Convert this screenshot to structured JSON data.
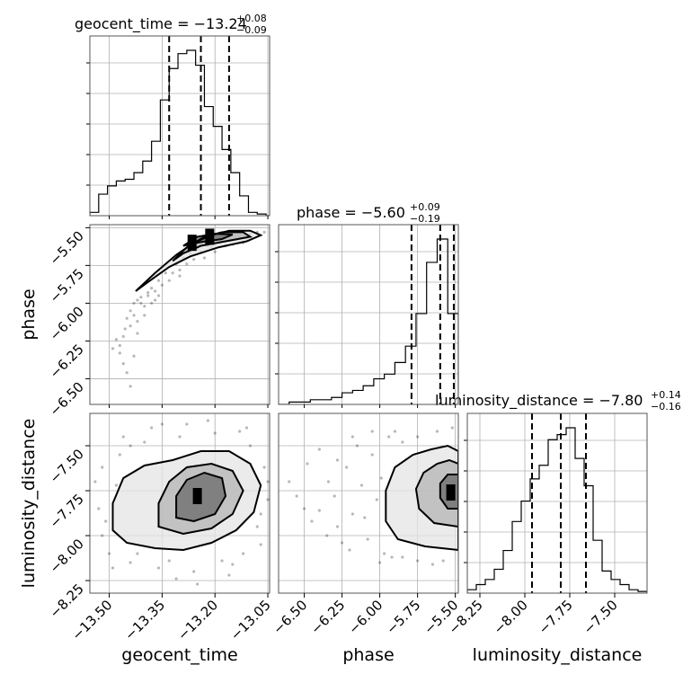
{
  "chart_data": {
    "type": "corner",
    "parameters": [
      "geocent_time",
      "phase",
      "luminosity_distance"
    ],
    "ranges": {
      "geocent_time": [
        -13.555,
        -13.045
      ],
      "phase": [
        -6.67,
        -5.48
      ],
      "luminosity_distance": [
        -8.32,
        -7.32
      ]
    },
    "grid": true,
    "diagonal": [
      {
        "parameter": "geocent_time",
        "title_main": "geocent_time = −13.24",
        "title_plus": "+0.08",
        "title_minus": "−0.09",
        "median": -13.24,
        "q16": -13.33,
        "q84": -13.16,
        "hist_edges": [
          -13.555,
          -13.53,
          -13.505,
          -13.48,
          -13.455,
          -13.43,
          -13.405,
          -13.38,
          -13.355,
          -13.33,
          -13.305,
          -13.28,
          -13.255,
          -13.23,
          -13.205,
          -13.18,
          -13.155,
          -13.13,
          -13.105,
          -13.08,
          -13.055,
          -13.045
        ],
        "hist_counts": [
          0.02,
          0.13,
          0.18,
          0.21,
          0.22,
          0.26,
          0.33,
          0.45,
          0.7,
          0.89,
          0.98,
          1.0,
          0.91,
          0.66,
          0.54,
          0.4,
          0.26,
          0.12,
          0.02,
          0.01,
          0.0
        ]
      },
      {
        "parameter": "phase",
        "title_main": "phase = −5.60",
        "title_plus": "+0.09",
        "title_minus": "−0.19",
        "median": -5.6,
        "q16": -5.79,
        "q84": -5.51,
        "hist_edges": [
          -6.67,
          -6.6,
          -6.53,
          -6.46,
          -6.39,
          -6.32,
          -6.25,
          -6.18,
          -6.11,
          -6.04,
          -5.97,
          -5.9,
          -5.83,
          -5.76,
          -5.69,
          -5.62,
          -5.55,
          -5.48
        ],
        "hist_counts": [
          0.0,
          0.01,
          0.01,
          0.02,
          0.02,
          0.03,
          0.05,
          0.06,
          0.08,
          0.11,
          0.13,
          0.18,
          0.25,
          0.39,
          0.61,
          0.71,
          0.39
        ]
      },
      {
        "parameter": "luminosity_distance",
        "title_main": "luminosity_distance = −7.80",
        "title_plus": "+0.14",
        "title_minus": "−0.16",
        "median": -7.8,
        "q16": -7.96,
        "q84": -7.66,
        "hist_edges": [
          -8.32,
          -8.27,
          -8.22,
          -8.17,
          -8.12,
          -8.07,
          -8.02,
          -7.97,
          -7.92,
          -7.87,
          -7.82,
          -7.77,
          -7.72,
          -7.67,
          -7.62,
          -7.57,
          -7.52,
          -7.47,
          -7.42,
          -7.37,
          -7.32
        ],
        "hist_counts": [
          0.02,
          0.05,
          0.08,
          0.14,
          0.25,
          0.42,
          0.54,
          0.67,
          0.75,
          0.9,
          0.93,
          0.97,
          0.79,
          0.63,
          0.31,
          0.13,
          0.08,
          0.05,
          0.02,
          0.01
        ]
      }
    ],
    "pairs": [
      {
        "x": "geocent_time",
        "y": "phase",
        "cores": [
          {
            "x": -13.215,
            "y": -5.56
          },
          {
            "x": -13.265,
            "y": -5.6
          }
        ],
        "contour_levels": [
          [
            [
              -13.425,
              -5.92
            ],
            [
              -13.37,
              -5.8
            ],
            [
              -13.31,
              -5.68
            ],
            [
              -13.26,
              -5.6
            ],
            [
              -13.21,
              -5.55
            ],
            [
              -13.16,
              -5.52
            ],
            [
              -13.1,
              -5.52
            ],
            [
              -13.07,
              -5.55
            ],
            [
              -13.11,
              -5.59
            ],
            [
              -13.19,
              -5.63
            ],
            [
              -13.27,
              -5.69
            ],
            [
              -13.33,
              -5.76
            ],
            [
              -13.39,
              -5.86
            ]
          ],
          [
            [
              -13.32,
              -5.72
            ],
            [
              -13.28,
              -5.63
            ],
            [
              -13.23,
              -5.56
            ],
            [
              -13.18,
              -5.53
            ],
            [
              -13.12,
              -5.53
            ],
            [
              -13.1,
              -5.56
            ],
            [
              -13.17,
              -5.59
            ],
            [
              -13.24,
              -5.62
            ],
            [
              -13.29,
              -5.67
            ]
          ],
          [
            [
              -13.29,
              -5.62
            ],
            [
              -13.25,
              -5.56
            ],
            [
              -13.2,
              -5.54
            ],
            [
              -13.15,
              -5.545
            ],
            [
              -13.18,
              -5.575
            ],
            [
              -13.24,
              -5.595
            ]
          ]
        ],
        "scatter": [
          [
            -13.455,
            -6.17
          ],
          [
            -13.47,
            -6.28
          ],
          [
            -13.44,
            -6.05
          ],
          [
            -13.42,
            -5.98
          ],
          [
            -13.43,
            -6.35
          ],
          [
            -13.4,
            -6.02
          ],
          [
            -13.38,
            -5.9
          ],
          [
            -13.36,
            -5.85
          ],
          [
            -13.34,
            -5.8
          ],
          [
            -13.31,
            -5.74
          ],
          [
            -13.29,
            -5.7
          ],
          [
            -13.27,
            -5.67
          ],
          [
            -13.25,
            -5.64
          ],
          [
            -13.22,
            -5.62
          ],
          [
            -13.19,
            -5.6
          ],
          [
            -13.16,
            -5.57
          ],
          [
            -13.13,
            -5.56
          ],
          [
            -13.1,
            -5.54
          ],
          [
            -13.08,
            -5.53
          ],
          [
            -13.45,
            -6.1
          ],
          [
            -13.46,
            -6.22
          ],
          [
            -13.44,
            -6.15
          ],
          [
            -13.41,
            -6.0
          ],
          [
            -13.39,
            -5.95
          ],
          [
            -13.37,
            -5.92
          ],
          [
            -13.35,
            -5.88
          ],
          [
            -13.32,
            -5.8
          ],
          [
            -13.3,
            -5.78
          ],
          [
            -13.28,
            -5.74
          ],
          [
            -13.26,
            -5.71
          ],
          [
            -13.24,
            -5.66
          ],
          [
            -13.21,
            -5.63
          ],
          [
            -13.18,
            -5.59
          ],
          [
            -13.14,
            -5.58
          ],
          [
            -13.11,
            -5.57
          ],
          [
            -13.43,
            -6.08
          ],
          [
            -13.42,
            -6.12
          ],
          [
            -13.4,
            -6.08
          ],
          [
            -13.38,
            -6.0
          ],
          [
            -13.36,
            -5.95
          ],
          [
            -13.46,
            -6.4
          ],
          [
            -13.45,
            -6.46
          ],
          [
            -13.44,
            -6.55
          ],
          [
            -13.47,
            -6.33
          ],
          [
            -13.42,
            -6.2
          ],
          [
            -13.33,
            -5.85
          ],
          [
            -13.3,
            -5.82
          ],
          [
            -13.23,
            -5.7
          ],
          [
            -13.2,
            -5.66
          ],
          [
            -13.17,
            -5.62
          ],
          [
            -13.06,
            -5.53
          ],
          [
            -13.08,
            -5.55
          ],
          [
            -13.12,
            -5.6
          ],
          [
            -13.15,
            -5.61
          ],
          [
            -13.48,
            -6.24
          ],
          [
            -13.49,
            -6.3
          ],
          [
            -13.43,
            -6.0
          ],
          [
            -13.41,
            -5.96
          ],
          [
            -13.39,
            -5.93
          ],
          [
            -13.37,
            -5.98
          ]
        ]
      },
      {
        "x": "geocent_time",
        "y": "luminosity_distance",
        "cores": [
          {
            "x": -13.25,
            "y": -7.78
          }
        ],
        "contour_levels": [
          [
            [
              -13.49,
              -7.97
            ],
            [
              -13.49,
              -7.82
            ],
            [
              -13.46,
              -7.68
            ],
            [
              -13.4,
              -7.61
            ],
            [
              -13.32,
              -7.58
            ],
            [
              -13.24,
              -7.53
            ],
            [
              -13.16,
              -7.53
            ],
            [
              -13.1,
              -7.6
            ],
            [
              -13.07,
              -7.72
            ],
            [
              -13.09,
              -7.87
            ],
            [
              -13.14,
              -7.97
            ],
            [
              -13.21,
              -8.04
            ],
            [
              -13.29,
              -8.08
            ],
            [
              -13.37,
              -8.07
            ],
            [
              -13.45,
              -8.04
            ]
          ],
          [
            [
              -13.36,
              -7.95
            ],
            [
              -13.36,
              -7.82
            ],
            [
              -13.33,
              -7.7
            ],
            [
              -13.28,
              -7.62
            ],
            [
              -13.21,
              -7.6
            ],
            [
              -13.15,
              -7.64
            ],
            [
              -13.12,
              -7.75
            ],
            [
              -13.15,
              -7.88
            ],
            [
              -13.21,
              -7.96
            ],
            [
              -13.29,
              -7.99
            ]
          ],
          [
            [
              -13.31,
              -7.9
            ],
            [
              -13.31,
              -7.78
            ],
            [
              -13.28,
              -7.69
            ],
            [
              -13.23,
              -7.65
            ],
            [
              -13.18,
              -7.68
            ],
            [
              -13.17,
              -7.78
            ],
            [
              -13.2,
              -7.88
            ],
            [
              -13.26,
              -7.92
            ]
          ]
        ],
        "scatter": [
          [
            -13.52,
            -7.62
          ],
          [
            -13.5,
            -8.1
          ],
          [
            -13.47,
            -7.55
          ],
          [
            -13.44,
            -8.15
          ],
          [
            -13.4,
            -7.48
          ],
          [
            -13.36,
            -8.18
          ],
          [
            -13.3,
            -7.45
          ],
          [
            -13.26,
            -8.2
          ],
          [
            -13.2,
            -7.43
          ],
          [
            -13.15,
            -8.16
          ],
          [
            -13.1,
            -7.5
          ],
          [
            -13.07,
            -8.05
          ],
          [
            -13.06,
            -7.62
          ],
          [
            -13.53,
            -7.85
          ],
          [
            -13.51,
            -7.92
          ],
          [
            -13.48,
            -7.72
          ],
          [
            -13.05,
            -7.8
          ],
          [
            -13.08,
            -7.95
          ],
          [
            -13.12,
            -8.1
          ],
          [
            -13.18,
            -8.14
          ],
          [
            -13.33,
            -8.14
          ],
          [
            -13.42,
            -8.1
          ],
          [
            -13.46,
            -7.45
          ],
          [
            -13.38,
            -7.4
          ],
          [
            -13.28,
            -7.38
          ],
          [
            -13.22,
            -7.36
          ],
          [
            -13.13,
            -7.42
          ],
          [
            -13.52,
            -8.0
          ],
          [
            -13.49,
            -8.18
          ],
          [
            -13.25,
            -8.27
          ],
          [
            -13.31,
            -8.24
          ],
          [
            -13.16,
            -8.22
          ],
          [
            -13.11,
            -7.4
          ],
          [
            -13.35,
            -7.38
          ],
          [
            -13.44,
            -7.5
          ],
          [
            -13.54,
            -7.7
          ],
          [
            -13.05,
            -7.7
          ],
          [
            -13.07,
            -7.88
          ]
        ]
      },
      {
        "x": "phase",
        "y": "luminosity_distance",
        "cores": [
          {
            "x": -5.53,
            "y": -7.76
          }
        ],
        "contour_levels": [
          [
            [
              -5.48,
              -8.08
            ],
            [
              -5.7,
              -8.06
            ],
            [
              -5.88,
              -8.02
            ],
            [
              -5.96,
              -7.92
            ],
            [
              -5.96,
              -7.75
            ],
            [
              -5.9,
              -7.62
            ],
            [
              -5.78,
              -7.55
            ],
            [
              -5.66,
              -7.52
            ],
            [
              -5.55,
              -7.5
            ],
            [
              -5.48,
              -7.53
            ]
          ],
          [
            [
              -5.48,
              -7.95
            ],
            [
              -5.64,
              -7.93
            ],
            [
              -5.74,
              -7.85
            ],
            [
              -5.76,
              -7.74
            ],
            [
              -5.71,
              -7.65
            ],
            [
              -5.62,
              -7.6
            ],
            [
              -5.54,
              -7.58
            ],
            [
              -5.48,
              -7.6
            ]
          ],
          [
            [
              -5.48,
              -7.85
            ],
            [
              -5.55,
              -7.85
            ],
            [
              -5.6,
              -7.79
            ],
            [
              -5.6,
              -7.71
            ],
            [
              -5.55,
              -7.66
            ],
            [
              -5.48,
              -7.66
            ]
          ]
        ],
        "scatter": [
          [
            -6.55,
            -7.78
          ],
          [
            -6.48,
            -7.6
          ],
          [
            -6.4,
            -7.86
          ],
          [
            -6.34,
            -7.7
          ],
          [
            -6.28,
            -7.95
          ],
          [
            -6.22,
            -7.62
          ],
          [
            -6.18,
            -7.88
          ],
          [
            -6.12,
            -7.72
          ],
          [
            -6.08,
            -8.02
          ],
          [
            -6.05,
            -7.55
          ],
          [
            -6.02,
            -7.8
          ],
          [
            -5.99,
            -7.68
          ],
          [
            -5.97,
            -8.1
          ],
          [
            -5.94,
            -7.45
          ],
          [
            -6.3,
            -7.78
          ],
          [
            -6.25,
            -8.04
          ],
          [
            -6.15,
            -7.5
          ],
          [
            -6.1,
            -7.9
          ],
          [
            -6.0,
            -8.15
          ],
          [
            -5.92,
            -8.12
          ],
          [
            -5.85,
            -8.12
          ],
          [
            -5.75,
            -8.14
          ],
          [
            -5.65,
            -8.16
          ],
          [
            -5.58,
            -8.14
          ],
          [
            -5.85,
            -7.48
          ],
          [
            -5.75,
            -7.45
          ],
          [
            -5.62,
            -7.42
          ],
          [
            -5.52,
            -7.4
          ],
          [
            -6.4,
            -7.52
          ],
          [
            -6.35,
            -8.0
          ],
          [
            -6.2,
            -8.08
          ],
          [
            -6.45,
            -7.92
          ],
          [
            -6.6,
            -7.7
          ],
          [
            -6.5,
            -7.85
          ],
          [
            -5.9,
            -7.42
          ],
          [
            -6.05,
            -7.42
          ],
          [
            -6.18,
            -7.45
          ],
          [
            -6.28,
            -7.58
          ]
        ]
      }
    ],
    "tick_labels": {
      "geocent_time": [
        "−13.50",
        "−13.35",
        "−13.20",
        "−13.05"
      ],
      "phase": [
        "−6.50",
        "−6.25",
        "−6.00",
        "−5.75",
        "−5.50"
      ],
      "luminosity_distance": [
        "−8.25",
        "−8.00",
        "−7.75",
        "−7.50"
      ]
    },
    "tick_values": {
      "geocent_time": [
        -13.5,
        -13.35,
        -13.2,
        -13.05
      ],
      "phase": [
        -6.5,
        -6.25,
        -6.0,
        -5.75,
        -5.5
      ],
      "luminosity_distance": [
        -8.25,
        -8.0,
        -7.75,
        -7.5
      ]
    },
    "axis_labels": {
      "x": [
        "geocent_time",
        "phase",
        "luminosity_distance"
      ],
      "y": [
        "phase",
        "luminosity_distance"
      ]
    }
  }
}
